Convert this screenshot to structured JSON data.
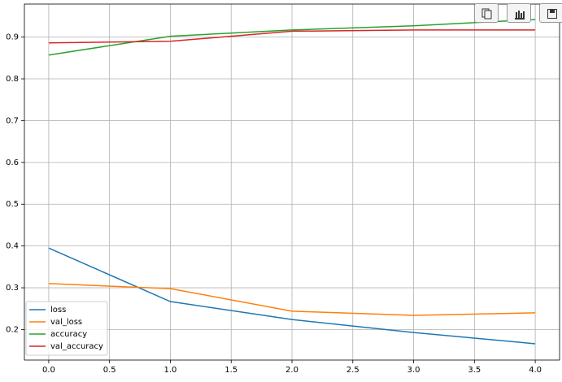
{
  "chart_data": {
    "type": "line",
    "x": [
      0,
      1,
      2,
      3,
      4
    ],
    "series": [
      {
        "name": "loss",
        "color": "#1f77b4",
        "values": [
          0.395,
          0.267,
          0.224,
          0.193,
          0.166
        ]
      },
      {
        "name": "val_loss",
        "color": "#ff7f0e",
        "values": [
          0.31,
          0.298,
          0.244,
          0.234,
          0.24
        ]
      },
      {
        "name": "accuracy",
        "color": "#2ca02c",
        "values": [
          0.857,
          0.902,
          0.917,
          0.927,
          0.942
        ]
      },
      {
        "name": "val_accuracy",
        "color": "#d62728",
        "values": [
          0.886,
          0.89,
          0.914,
          0.917,
          0.917
        ]
      }
    ],
    "xlim": [
      -0.2,
      4.2
    ],
    "xticks": [
      {
        "value": 0,
        "label": "0.0"
      },
      0.5,
      {
        "value": 1,
        "label": "1.0"
      },
      1.5,
      {
        "value": 2,
        "label": "2.0"
      },
      2.5,
      {
        "value": 3,
        "label": "3.0"
      },
      3.5,
      {
        "value": 4,
        "label": "4.0"
      }
    ],
    "ylim": [
      0.127,
      0.979
    ],
    "yticks": [
      0.2,
      0.3,
      0.4,
      0.5,
      0.6,
      0.7,
      0.8,
      0.9
    ],
    "grid": true,
    "legend": "lower left"
  }
}
